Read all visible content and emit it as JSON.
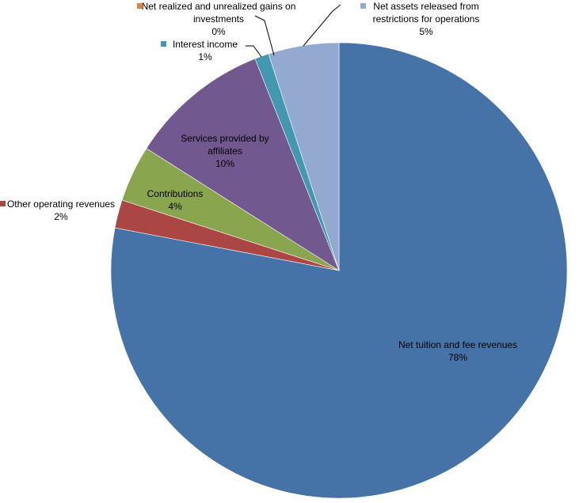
{
  "chart_data": {
    "type": "pie",
    "categories": [
      "Net tuition and fee revenues",
      "Other operating revenues",
      "Contributions",
      "Services provided by affiliates",
      "Interest income",
      "Net realized and unrealized gains on investments",
      "Net assets released from restrictions for operations"
    ],
    "values": [
      78,
      2,
      4,
      10,
      1,
      0,
      5
    ],
    "value_labels": [
      "78%",
      "2%",
      "4%",
      "10%",
      "1%",
      "0%",
      "5%"
    ],
    "colors": [
      "#4572a7",
      "#aa4643",
      "#89a54e",
      "#71588f",
      "#4198af",
      "#db843d",
      "#93a9cf"
    ]
  }
}
